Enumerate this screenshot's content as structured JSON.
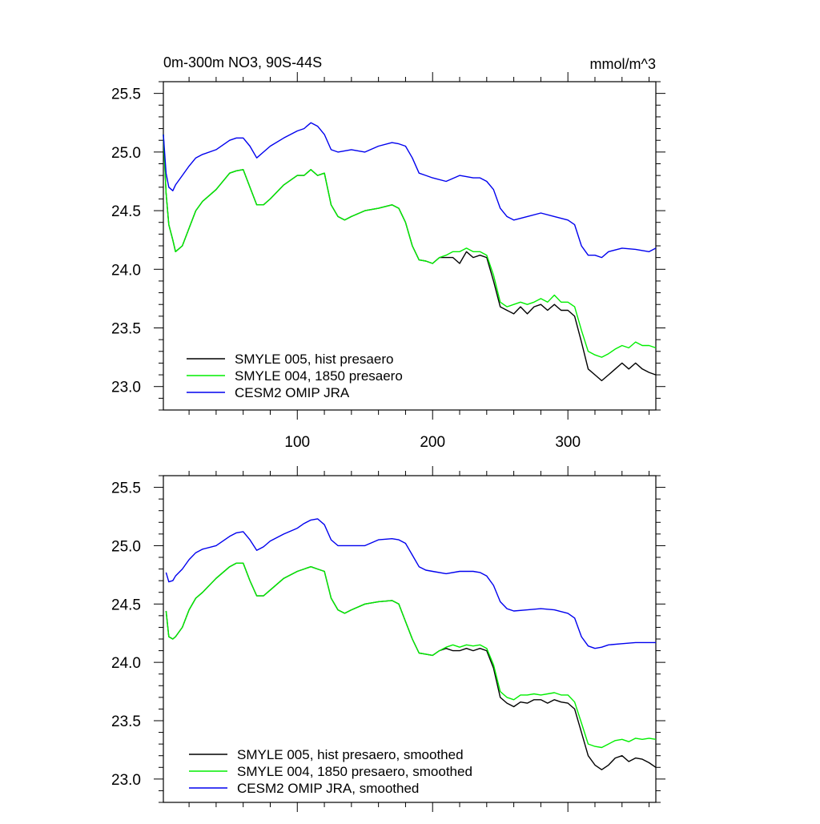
{
  "title_left": "0m-300m NO3, 90S-44S",
  "title_right": "mmol/m^3",
  "chart_data": [
    {
      "type": "line",
      "xlim": [
        1,
        365
      ],
      "ylim": [
        22.8,
        25.6
      ],
      "yticks": [
        23.0,
        23.5,
        24.0,
        24.5,
        25.0,
        25.5
      ],
      "ytick_labels": [
        "23.0",
        "23.5",
        "24.0",
        "24.5",
        "25.0",
        "25.5"
      ],
      "xticks": [
        100,
        200,
        300
      ],
      "xtick_labels": [
        "100",
        "200",
        "300"
      ],
      "legend_location": "bottom-left",
      "series": [
        {
          "name": "SMYLE 005, hist presaero",
          "color": "#000000",
          "x": [
            1,
            3,
            5,
            8,
            10,
            15,
            20,
            25,
            30,
            40,
            50,
            55,
            60,
            65,
            70,
            75,
            80,
            90,
            100,
            105,
            110,
            115,
            120,
            125,
            130,
            135,
            140,
            150,
            160,
            170,
            175,
            180,
            185,
            190,
            195,
            200,
            205,
            210,
            215,
            220,
            225,
            230,
            235,
            240,
            245,
            250,
            255,
            260,
            265,
            270,
            275,
            280,
            285,
            290,
            295,
            300,
            305,
            310,
            315,
            320,
            325,
            330,
            335,
            340,
            345,
            350,
            355,
            360,
            365
          ],
          "y": [
            25.15,
            24.65,
            24.38,
            24.25,
            24.15,
            24.2,
            24.35,
            24.5,
            24.58,
            24.68,
            24.82,
            24.84,
            24.85,
            24.7,
            24.55,
            24.55,
            24.6,
            24.72,
            24.8,
            24.8,
            24.85,
            24.8,
            24.82,
            24.55,
            24.45,
            24.42,
            24.45,
            24.5,
            24.52,
            24.55,
            24.52,
            24.4,
            24.2,
            24.08,
            24.07,
            24.05,
            24.1,
            24.1,
            24.1,
            24.05,
            24.15,
            24.1,
            24.12,
            24.1,
            23.9,
            23.68,
            23.65,
            23.62,
            23.68,
            23.62,
            23.68,
            23.7,
            23.65,
            23.7,
            23.65,
            23.65,
            23.6,
            23.38,
            23.15,
            23.1,
            23.05,
            23.1,
            23.15,
            23.2,
            23.15,
            23.2,
            23.15,
            23.12,
            23.1
          ]
        },
        {
          "name": "SMYLE 004, 1850 presaero",
          "color": "#00ee00",
          "x": [
            1,
            3,
            5,
            8,
            10,
            15,
            20,
            25,
            30,
            40,
            50,
            55,
            60,
            65,
            70,
            75,
            80,
            90,
            100,
            105,
            110,
            115,
            120,
            125,
            130,
            135,
            140,
            150,
            160,
            170,
            175,
            180,
            185,
            190,
            195,
            200,
            205,
            210,
            215,
            220,
            225,
            230,
            235,
            240,
            245,
            250,
            255,
            260,
            265,
            270,
            275,
            280,
            285,
            290,
            295,
            300,
            305,
            310,
            315,
            320,
            325,
            330,
            335,
            340,
            345,
            350,
            355,
            360,
            365
          ],
          "y": [
            25.15,
            24.65,
            24.38,
            24.25,
            24.15,
            24.2,
            24.35,
            24.5,
            24.58,
            24.68,
            24.82,
            24.84,
            24.85,
            24.7,
            24.55,
            24.55,
            24.6,
            24.72,
            24.8,
            24.8,
            24.85,
            24.8,
            24.82,
            24.55,
            24.45,
            24.42,
            24.45,
            24.5,
            24.52,
            24.55,
            24.52,
            24.4,
            24.2,
            24.08,
            24.07,
            24.05,
            24.1,
            24.12,
            24.15,
            24.15,
            24.18,
            24.15,
            24.15,
            24.12,
            23.95,
            23.72,
            23.68,
            23.7,
            23.72,
            23.7,
            23.72,
            23.75,
            23.72,
            23.78,
            23.72,
            23.72,
            23.68,
            23.48,
            23.3,
            23.27,
            23.25,
            23.28,
            23.32,
            23.35,
            23.33,
            23.38,
            23.35,
            23.35,
            23.33
          ]
        },
        {
          "name": "CESM2 OMIP JRA",
          "color": "#0000ee",
          "x": [
            1,
            3,
            5,
            8,
            10,
            15,
            20,
            25,
            30,
            40,
            50,
            55,
            60,
            65,
            70,
            75,
            80,
            90,
            100,
            105,
            110,
            115,
            120,
            125,
            130,
            140,
            150,
            160,
            170,
            175,
            180,
            185,
            190,
            195,
            200,
            210,
            220,
            230,
            235,
            240,
            245,
            250,
            255,
            260,
            270,
            280,
            290,
            300,
            305,
            310,
            315,
            320,
            325,
            330,
            340,
            350,
            360,
            365
          ],
          "y": [
            25.15,
            24.82,
            24.7,
            24.67,
            24.72,
            24.8,
            24.88,
            24.95,
            24.98,
            25.02,
            25.1,
            25.12,
            25.12,
            25.05,
            24.95,
            25.0,
            25.05,
            25.12,
            25.18,
            25.2,
            25.25,
            25.22,
            25.15,
            25.02,
            25.0,
            25.02,
            25.0,
            25.05,
            25.08,
            25.07,
            25.05,
            24.95,
            24.82,
            24.8,
            24.78,
            24.75,
            24.8,
            24.78,
            24.78,
            24.75,
            24.68,
            24.52,
            24.45,
            24.42,
            24.45,
            24.48,
            24.45,
            24.42,
            24.38,
            24.2,
            24.12,
            24.12,
            24.1,
            24.15,
            24.18,
            24.17,
            24.15,
            24.18
          ]
        }
      ]
    },
    {
      "type": "line",
      "xlim": [
        1,
        365
      ],
      "ylim": [
        22.8,
        25.6
      ],
      "yticks": [
        23.0,
        23.5,
        24.0,
        24.5,
        25.0,
        25.5
      ],
      "ytick_labels": [
        "23.0",
        "23.5",
        "24.0",
        "24.5",
        "25.0",
        "25.5"
      ],
      "xticks": [
        100,
        200,
        300
      ],
      "xtick_labels": [],
      "legend_location": "bottom-left",
      "series": [
        {
          "name": "SMYLE 005, hist presaero, smoothed",
          "color": "#000000",
          "x": [
            3,
            5,
            8,
            10,
            15,
            20,
            25,
            30,
            40,
            50,
            55,
            60,
            65,
            70,
            75,
            80,
            90,
            100,
            105,
            110,
            115,
            120,
            125,
            130,
            135,
            140,
            150,
            160,
            170,
            175,
            180,
            185,
            190,
            195,
            200,
            205,
            210,
            215,
            220,
            225,
            230,
            235,
            240,
            245,
            250,
            255,
            260,
            265,
            270,
            275,
            280,
            285,
            290,
            295,
            300,
            305,
            310,
            315,
            320,
            325,
            330,
            335,
            340,
            345,
            350,
            355,
            360,
            365
          ],
          "y": [
            24.44,
            24.22,
            24.2,
            24.22,
            24.3,
            24.45,
            24.55,
            24.6,
            24.72,
            24.82,
            24.85,
            24.85,
            24.7,
            24.57,
            24.57,
            24.62,
            24.72,
            24.78,
            24.8,
            24.82,
            24.8,
            24.78,
            24.55,
            24.45,
            24.42,
            24.45,
            24.5,
            24.52,
            24.53,
            24.5,
            24.35,
            24.2,
            24.08,
            24.07,
            24.06,
            24.1,
            24.12,
            24.1,
            24.1,
            24.12,
            24.1,
            24.12,
            24.1,
            23.95,
            23.7,
            23.65,
            23.62,
            23.66,
            23.65,
            23.68,
            23.68,
            23.65,
            23.68,
            23.66,
            23.65,
            23.6,
            23.4,
            23.2,
            23.12,
            23.08,
            23.12,
            23.18,
            23.2,
            23.15,
            23.18,
            23.17,
            23.14,
            23.1
          ]
        },
        {
          "name": "SMYLE 004, 1850 presaero, smoothed",
          "color": "#00ee00",
          "x": [
            3,
            5,
            8,
            10,
            15,
            20,
            25,
            30,
            40,
            50,
            55,
            60,
            65,
            70,
            75,
            80,
            90,
            100,
            105,
            110,
            115,
            120,
            125,
            130,
            135,
            140,
            150,
            160,
            170,
            175,
            180,
            185,
            190,
            195,
            200,
            205,
            210,
            215,
            220,
            225,
            230,
            235,
            240,
            245,
            250,
            255,
            260,
            265,
            270,
            275,
            280,
            285,
            290,
            295,
            300,
            305,
            310,
            315,
            320,
            325,
            330,
            335,
            340,
            345,
            350,
            355,
            360,
            365
          ],
          "y": [
            24.44,
            24.22,
            24.2,
            24.22,
            24.3,
            24.45,
            24.55,
            24.6,
            24.72,
            24.82,
            24.85,
            24.85,
            24.7,
            24.57,
            24.57,
            24.62,
            24.72,
            24.78,
            24.8,
            24.82,
            24.8,
            24.78,
            24.55,
            24.45,
            24.42,
            24.45,
            24.5,
            24.52,
            24.53,
            24.5,
            24.35,
            24.2,
            24.08,
            24.07,
            24.06,
            24.1,
            24.13,
            24.15,
            24.13,
            24.15,
            24.14,
            24.15,
            24.12,
            23.98,
            23.75,
            23.7,
            23.68,
            23.72,
            23.72,
            23.73,
            23.72,
            23.73,
            23.74,
            23.72,
            23.72,
            23.66,
            23.48,
            23.3,
            23.28,
            23.27,
            23.3,
            23.33,
            23.34,
            23.32,
            23.35,
            23.34,
            23.35,
            23.34
          ]
        },
        {
          "name": "CESM2 OMIP JRA, smoothed",
          "color": "#0000ee",
          "x": [
            3,
            5,
            8,
            10,
            15,
            20,
            25,
            30,
            40,
            50,
            55,
            60,
            65,
            70,
            75,
            80,
            90,
            100,
            105,
            110,
            115,
            120,
            125,
            130,
            140,
            150,
            160,
            170,
            175,
            180,
            185,
            190,
            195,
            200,
            210,
            220,
            230,
            235,
            240,
            245,
            250,
            255,
            260,
            270,
            280,
            290,
            300,
            305,
            310,
            315,
            320,
            325,
            330,
            340,
            350,
            360,
            365
          ],
          "y": [
            24.77,
            24.69,
            24.7,
            24.74,
            24.8,
            24.88,
            24.94,
            24.97,
            25.0,
            25.08,
            25.11,
            25.12,
            25.05,
            24.96,
            24.99,
            25.04,
            25.1,
            25.15,
            25.19,
            25.22,
            25.23,
            25.18,
            25.05,
            25.0,
            25.0,
            25.0,
            25.05,
            25.06,
            25.05,
            25.02,
            24.92,
            24.82,
            24.79,
            24.78,
            24.76,
            24.78,
            24.78,
            24.77,
            24.74,
            24.66,
            24.52,
            24.46,
            24.44,
            24.45,
            24.46,
            24.45,
            24.42,
            24.38,
            24.22,
            24.14,
            24.12,
            24.13,
            24.15,
            24.16,
            24.17,
            24.17,
            24.17
          ]
        }
      ]
    }
  ]
}
